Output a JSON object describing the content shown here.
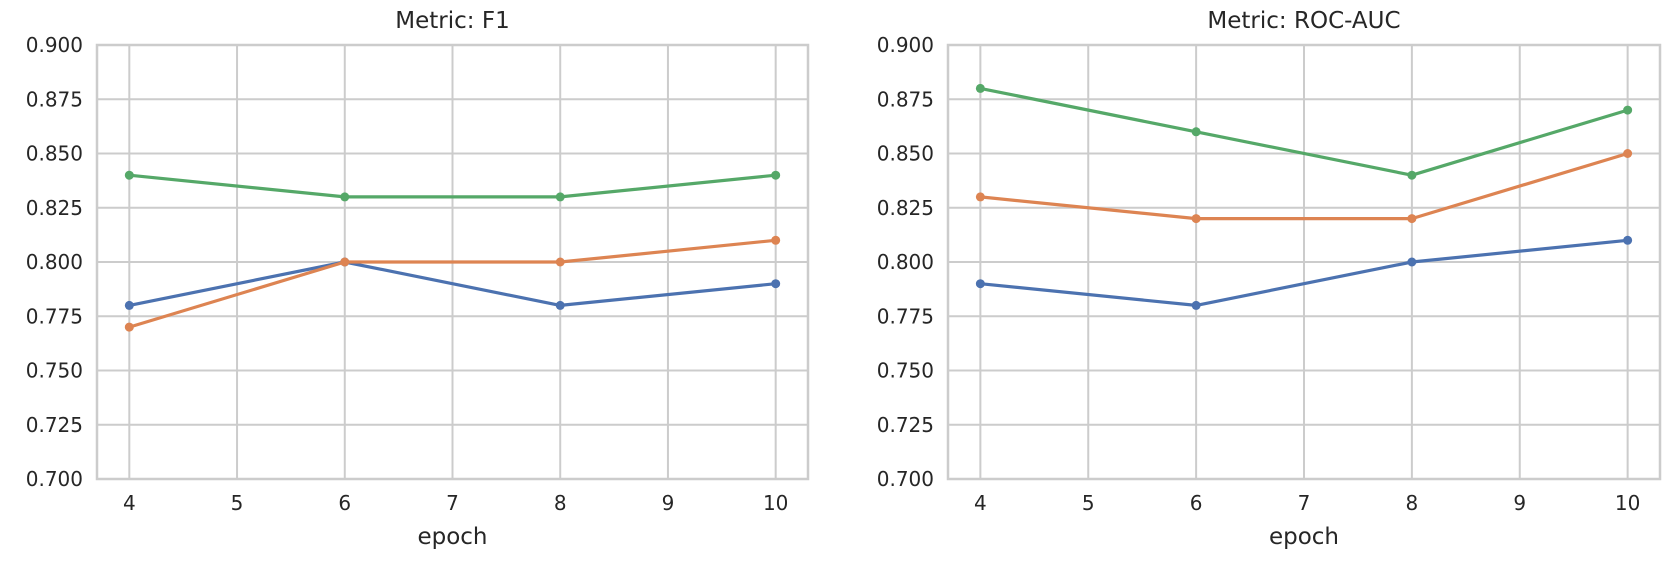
{
  "style": {
    "background": "#ffffff",
    "grid_color": "#cccccc",
    "spine_color": "#cccccc",
    "text_color": "#262626"
  },
  "chart_data": [
    {
      "type": "line",
      "title": "Metric: F1",
      "xlabel": "epoch",
      "ylabel": "",
      "x": [
        4,
        6,
        8,
        10
      ],
      "series": [
        {
          "name": "series-blue",
          "color": "#4C72B0",
          "values": [
            0.78,
            0.8,
            0.78,
            0.79
          ]
        },
        {
          "name": "series-orange",
          "color": "#DD8452",
          "values": [
            0.77,
            0.8,
            0.8,
            0.81
          ]
        },
        {
          "name": "series-green",
          "color": "#55A868",
          "values": [
            0.84,
            0.83,
            0.83,
            0.84
          ]
        }
      ],
      "xticks": [
        4,
        5,
        6,
        7,
        8,
        9,
        10
      ],
      "yticks": [
        0.7,
        0.725,
        0.75,
        0.775,
        0.8,
        0.825,
        0.85,
        0.875,
        0.9
      ],
      "ytick_decimals": 3,
      "xlim": [
        3.7,
        10.3
      ],
      "ylim": [
        0.7,
        0.9
      ],
      "grid": true,
      "legend": "none",
      "markers": true
    },
    {
      "type": "line",
      "title": "Metric: ROC-AUC",
      "xlabel": "epoch",
      "ylabel": "",
      "x": [
        4,
        6,
        8,
        10
      ],
      "series": [
        {
          "name": "series-blue",
          "color": "#4C72B0",
          "values": [
            0.79,
            0.78,
            0.8,
            0.81
          ]
        },
        {
          "name": "series-orange",
          "color": "#DD8452",
          "values": [
            0.83,
            0.82,
            0.82,
            0.85
          ]
        },
        {
          "name": "series-green",
          "color": "#55A868",
          "values": [
            0.88,
            0.86,
            0.84,
            0.87
          ]
        }
      ],
      "xticks": [
        4,
        5,
        6,
        7,
        8,
        9,
        10
      ],
      "yticks": [
        0.7,
        0.725,
        0.75,
        0.775,
        0.8,
        0.825,
        0.85,
        0.875,
        0.9
      ],
      "ytick_decimals": 3,
      "xlim": [
        3.7,
        10.3
      ],
      "ylim": [
        0.7,
        0.9
      ],
      "grid": true,
      "legend": "none",
      "markers": true
    }
  ]
}
